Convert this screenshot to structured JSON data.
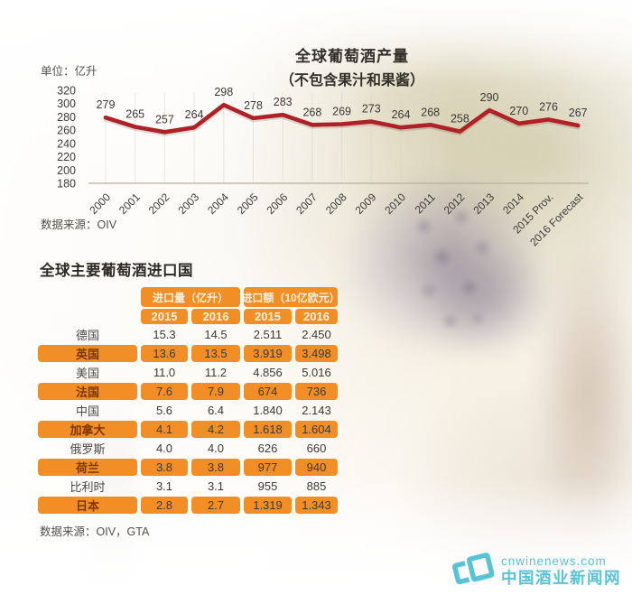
{
  "colors": {
    "line_red": "#AE2227",
    "table_orange": "#F28E26",
    "logo_teal": "#58C3D5"
  },
  "chart": {
    "title_line1": "全球葡萄酒产量",
    "title_line2": "（不包含果汁和果酱）",
    "unit_label": "单位：亿升",
    "source": "数据来源：OIV"
  },
  "chart_data": [
    {
      "type": "line",
      "title": "全球葡萄酒产量（不包含果汁和果酱）",
      "unit": "亿升",
      "categories": [
        "2000",
        "2001",
        "2002",
        "2003",
        "2004",
        "2005",
        "2006",
        "2007",
        "2008",
        "2009",
        "2010",
        "2011",
        "2012",
        "2013",
        "2014",
        "2015 Prov.",
        "2016 Forecast"
      ],
      "values": [
        279,
        265,
        257,
        264,
        298,
        278,
        283,
        268,
        269,
        273,
        264,
        268,
        258,
        290,
        270,
        276,
        267
      ],
      "ylim": [
        180,
        320
      ],
      "yticks": [
        180,
        200,
        220,
        240,
        260,
        280,
        300,
        320
      ],
      "grid": "vertical",
      "legend": "none",
      "line_color": "#AE2227",
      "source": "OIV"
    },
    {
      "type": "table",
      "title": "全球主要葡萄酒进口国",
      "column_groups": [
        "进口量（亿升）",
        "进口额（10亿欧元）"
      ],
      "columns": [
        "2015",
        "2016",
        "2015",
        "2016"
      ],
      "rows": [
        {
          "country": "德国",
          "values": [
            "15.3",
            "14.5",
            "2.511",
            "2.450"
          ],
          "highlight": false
        },
        {
          "country": "英国",
          "values": [
            "13.6",
            "13.5",
            "3.919",
            "3.498"
          ],
          "highlight": true
        },
        {
          "country": "美国",
          "values": [
            "11.0",
            "11.2",
            "4.856",
            "5.016"
          ],
          "highlight": false
        },
        {
          "country": "法国",
          "values": [
            "7.6",
            "7.9",
            "674",
            "736"
          ],
          "highlight": true
        },
        {
          "country": "中国",
          "values": [
            "5.6",
            "6.4",
            "1.840",
            "2.143"
          ],
          "highlight": false
        },
        {
          "country": "加拿大",
          "values": [
            "4.1",
            "4.2",
            "1.618",
            "1.604"
          ],
          "highlight": true
        },
        {
          "country": "俄罗斯",
          "values": [
            "4.0",
            "4.0",
            "626",
            "660"
          ],
          "highlight": false
        },
        {
          "country": "荷兰",
          "values": [
            "3.8",
            "3.8",
            "977",
            "940"
          ],
          "highlight": true
        },
        {
          "country": "比利时",
          "values": [
            "3.1",
            "3.1",
            "955",
            "885"
          ],
          "highlight": false
        },
        {
          "country": "日本",
          "values": [
            "2.8",
            "2.7",
            "1.319",
            "1.343"
          ],
          "highlight": true
        }
      ],
      "source": "OIV，GTA"
    }
  ],
  "table": {
    "section_title": "全球主要葡萄酒进口国",
    "group_headers": [
      "进口量（亿升）",
      "进口额（10亿欧元）"
    ],
    "year_headers": [
      "2015",
      "2016",
      "2015",
      "2016"
    ],
    "source": "数据来源：OIV，GTA"
  },
  "logo": {
    "domain": "cnwinenews.com",
    "name": "中国酒业新闻网"
  }
}
